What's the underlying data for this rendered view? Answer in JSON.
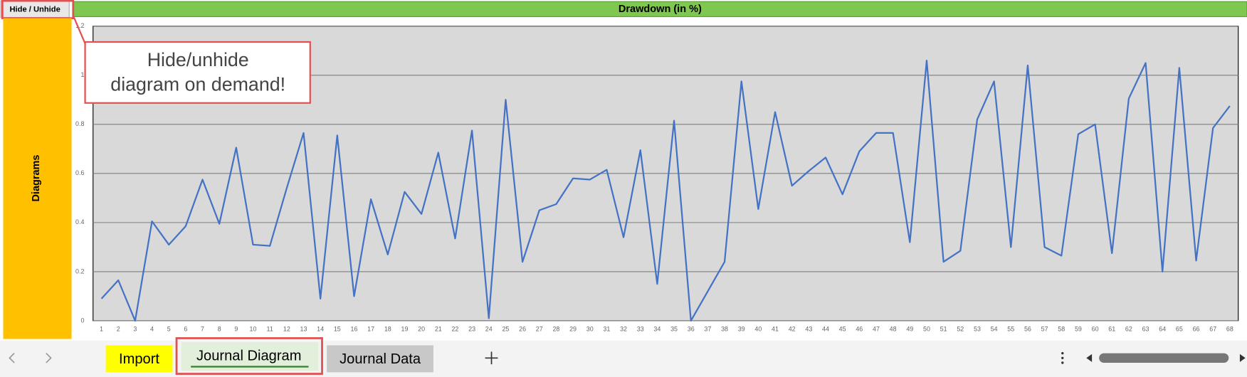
{
  "hide_button": "Hide / Unhide",
  "side_label": "Diagrams",
  "callout": [
    "Hide/unhide",
    "diagram on demand!"
  ],
  "tabs": [
    "Import",
    "Journal Diagram",
    "Journal Data"
  ],
  "chart_data": {
    "type": "line",
    "title": "Drawdown (in %)",
    "categories": [
      "1",
      "2",
      "3",
      "4",
      "5",
      "6",
      "7",
      "8",
      "9",
      "10",
      "11",
      "12",
      "13",
      "14",
      "15",
      "16",
      "17",
      "18",
      "19",
      "20",
      "21",
      "22",
      "23",
      "24",
      "25",
      "26",
      "27",
      "28",
      "29",
      "30",
      "31",
      "32",
      "33",
      "34",
      "35",
      "36",
      "37",
      "38",
      "39",
      "40",
      "41",
      "42",
      "43",
      "44",
      "45",
      "46",
      "47",
      "48",
      "49",
      "50",
      "51",
      "52",
      "53",
      "54",
      "55",
      "56",
      "57",
      "58",
      "59",
      "60",
      "61",
      "62",
      "63",
      "64",
      "65",
      "66",
      "67",
      "68"
    ],
    "series": [
      {
        "name": "Drawdown",
        "color": "#4472c4",
        "values": [
          0.09,
          0.165,
          0,
          0.405,
          0.31,
          0.385,
          0.575,
          0.395,
          0.705,
          0.31,
          0.305,
          0.54,
          0.765,
          0.09,
          0.755,
          0.1,
          0.495,
          0.27,
          0.525,
          0.435,
          0.685,
          0.335,
          0.775,
          0.01,
          0.9,
          0.24,
          0.45,
          0.475,
          0.58,
          0.575,
          0.615,
          0.34,
          0.695,
          0.15,
          0.815,
          0,
          0.12,
          0.24,
          0.975,
          0.455,
          0.85,
          0.55,
          0.61,
          0.665,
          0.515,
          0.69,
          0.765,
          0.765,
          0.32,
          1.06,
          0.24,
          0.285,
          0.82,
          0.975,
          0.3,
          1.04,
          0.3,
          0.265,
          0.76,
          0.8,
          0.275,
          0.905,
          1.05,
          0.2,
          1.03,
          0.245,
          0.785,
          0.875
        ]
      }
    ],
    "ylim": [
      0,
      1.2
    ],
    "yticks": [
      0,
      0.2,
      0.4,
      0.6,
      0.8,
      1,
      1.2
    ],
    "grid": true
  }
}
